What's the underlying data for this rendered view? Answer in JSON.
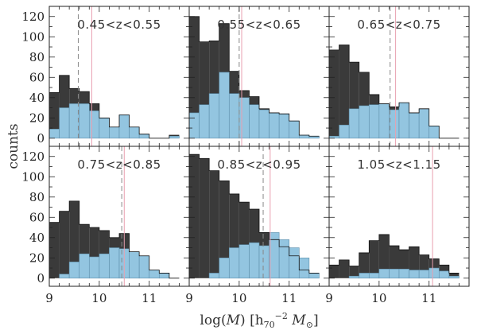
{
  "chart_data": {
    "type": "bar",
    "layout": "2x3 panel grid of stacked histograms",
    "ylabel": "counts",
    "xlabel": "log(M) [h70^-2 M⊙]",
    "xlabel_parts": {
      "main": "log(",
      "mass": "M",
      "close": ")",
      "bracket_open": "[h",
      "h_sub": "70",
      "exp": "−2",
      "mass2": "M",
      "sun_sub": "⊙",
      "bracket_close": "]"
    },
    "xlim": [
      9,
      11.8
    ],
    "ylim": [
      -8,
      130
    ],
    "xticks": [
      9,
      10,
      11
    ],
    "yticks": [
      0,
      20,
      40,
      60,
      80,
      100,
      120
    ],
    "bin_edges_start": 9.0,
    "bin_width": 0.2,
    "colors": {
      "total": "#3a3a3a",
      "subset": "#93c5e0",
      "dashed_line": "#888888",
      "solid_line": "#e8a0b0",
      "frame": "#222222"
    },
    "panels": [
      {
        "label": "0.45<z<0.55",
        "total": [
          45,
          62,
          49,
          46,
          34,
          20,
          11,
          23,
          11,
          4,
          0,
          0,
          3
        ],
        "subset": [
          9,
          30,
          34,
          34,
          27,
          20,
          11,
          23,
          11,
          4,
          0,
          0,
          2
        ],
        "dashed_x": 9.58,
        "solid_x": 9.85
      },
      {
        "label": "0.55<z<0.65",
        "total": [
          120,
          95,
          96,
          113,
          66,
          47,
          41,
          29,
          25,
          24,
          17,
          3,
          2
        ],
        "subset": [
          25,
          33,
          44,
          65,
          44,
          40,
          33,
          28,
          25,
          24,
          17,
          3,
          2
        ],
        "dashed_x": 10.0,
        "solid_x": 10.05
      },
      {
        "label": "0.65<z<0.75",
        "total": [
          87,
          92,
          75,
          65,
          43,
          34,
          31,
          35,
          25,
          29,
          12,
          0,
          0
        ],
        "subset": [
          2,
          13,
          29,
          32,
          33,
          34,
          28,
          35,
          25,
          29,
          12,
          0,
          0
        ],
        "dashed_x": 10.22,
        "solid_x": 10.33
      },
      {
        "label": "0.75<z<0.85",
        "total": [
          55,
          66,
          76,
          53,
          50,
          47,
          40,
          44,
          26,
          22,
          8,
          5,
          0
        ],
        "subset": [
          0,
          4,
          16,
          24,
          21,
          24,
          30,
          29,
          26,
          22,
          8,
          5,
          0
        ],
        "dashed_x": 10.45,
        "solid_x": 10.5
      },
      {
        "label": "0.85<z<0.95",
        "total": [
          122,
          118,
          106,
          96,
          83,
          75,
          68,
          45,
          38,
          31,
          22,
          8,
          5
        ],
        "subset": [
          0,
          0,
          5,
          20,
          30,
          33,
          35,
          32,
          45,
          38,
          30,
          20,
          5
        ],
        "dashed_x": 10.48,
        "solid_x": 10.62
      },
      {
        "label": "1.05<z<1.15",
        "total": [
          13,
          18,
          12,
          25,
          37,
          43,
          32,
          28,
          31,
          23,
          19,
          13,
          5
        ],
        "subset": [
          0,
          0,
          2,
          5,
          5,
          9,
          9,
          9,
          8,
          8,
          10,
          7,
          2
        ],
        "dashed_x": null,
        "solid_x": 11.07
      }
    ]
  }
}
